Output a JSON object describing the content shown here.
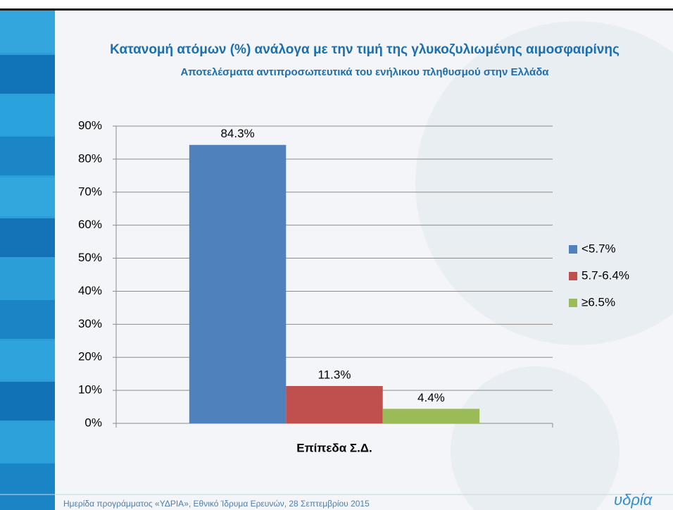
{
  "chart_data": {
    "type": "bar",
    "title": "Κατανομή ατόμων (%) ανάλογα με την τιμή της γλυκοζυλιωμένης αιμοσφαιρίνης",
    "subtitle": "Αποτελέσματα αντιπροσωπευτικά του ενήλικου πληθυσμού στην Ελλάδα",
    "categories": [
      "Επίπεδα Σ.Δ."
    ],
    "series": [
      {
        "name": "<5.7%",
        "color": "#4f81bd",
        "values": [
          84.3
        ],
        "value_labels": [
          "84.3%"
        ]
      },
      {
        "name": "5.7-6.4%",
        "color": "#c0504d",
        "values": [
          11.3
        ],
        "value_labels": [
          "11.3%"
        ]
      },
      {
        "name": "≥6.5%",
        "color": "#9bbb59",
        "values": [
          4.4
        ],
        "value_labels": [
          "4.4%"
        ]
      }
    ],
    "ylim": [
      0,
      90
    ],
    "yticks": [
      {
        "value": 0,
        "label": "0%"
      },
      {
        "value": 10,
        "label": "10%"
      },
      {
        "value": 20,
        "label": "20%"
      },
      {
        "value": 30,
        "label": "30%"
      },
      {
        "value": 40,
        "label": "40%"
      },
      {
        "value": 50,
        "label": "50%"
      },
      {
        "value": 60,
        "label": "60%"
      },
      {
        "value": 70,
        "label": "70%"
      },
      {
        "value": 80,
        "label": "80%"
      },
      {
        "value": 90,
        "label": "90%"
      }
    ],
    "grid": true,
    "legend": "right"
  },
  "footer": "Ημερίδα προγράμματος «ΥΔΡΙΑ», Εθνικό Ίδρυμα Ερευνών, 28 Σεπτεμβρίου 2015",
  "logo": "υδρία"
}
